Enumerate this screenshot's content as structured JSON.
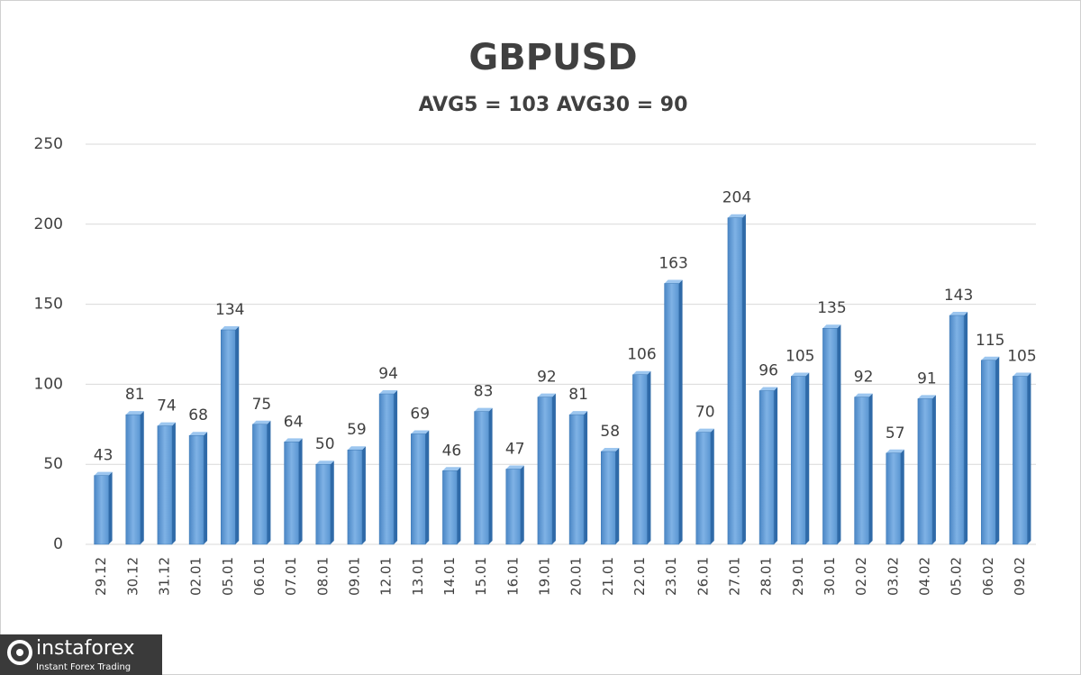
{
  "chart_data": {
    "type": "bar",
    "title": "GBPUSD",
    "subtitle": "AVG5 = 103 AVG30 = 90",
    "categories": [
      "29.12",
      "30.12",
      "31.12",
      "02.01",
      "05.01",
      "06.01",
      "07.01",
      "08.01",
      "09.01",
      "12.01",
      "13.01",
      "14.01",
      "15.01",
      "16.01",
      "19.01",
      "20.01",
      "21.01",
      "22.01",
      "23.01",
      "26.01",
      "27.01",
      "28.01",
      "29.01",
      "30.01",
      "02.02",
      "03.02",
      "04.02",
      "05.02",
      "06.02",
      "09.02"
    ],
    "values": [
      43,
      81,
      74,
      68,
      134,
      75,
      64,
      50,
      59,
      94,
      69,
      46,
      83,
      47,
      92,
      81,
      58,
      106,
      163,
      70,
      204,
      96,
      105,
      135,
      92,
      57,
      91,
      143,
      115,
      105
    ],
    "color": "#5b9bd5",
    "ylim": [
      0,
      250
    ],
    "yticks": [
      0,
      50,
      100,
      150,
      200,
      250
    ],
    "grid": true
  },
  "watermark": {
    "name": "instaforex",
    "tagline": "Instant Forex Trading"
  }
}
